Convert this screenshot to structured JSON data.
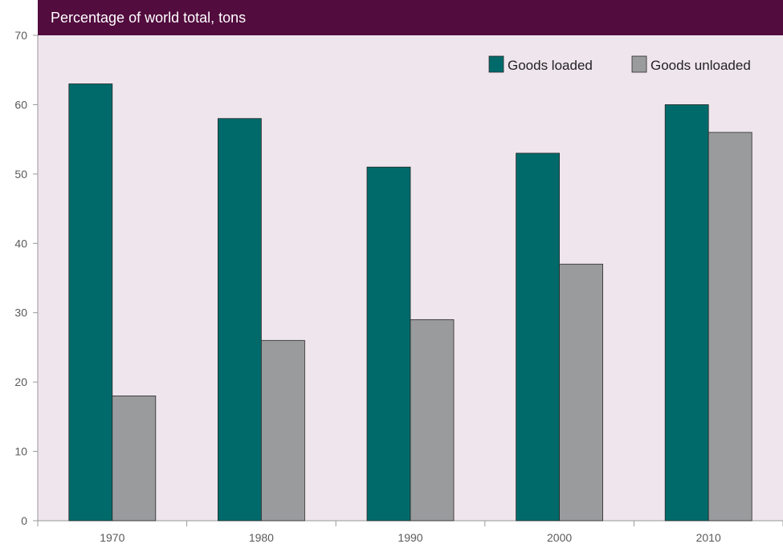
{
  "colors": {
    "plot_background": "#efe5ec",
    "title_bar": "#520c3e",
    "goods_loaded": "#006a6b",
    "goods_unloaded": "#9a9b9d",
    "axis": "#999999"
  },
  "chart_data": {
    "type": "bar",
    "title": "Percentage of world total, tons",
    "xlabel": "",
    "ylabel": "",
    "ylim": [
      0,
      70
    ],
    "yticks": [
      0,
      10,
      20,
      30,
      40,
      50,
      60,
      70
    ],
    "categories": [
      "1970",
      "1980",
      "1990",
      "2000",
      "2010"
    ],
    "series": [
      {
        "name": "Goods loaded",
        "values": [
          63,
          58,
          51,
          53,
          60
        ]
      },
      {
        "name": "Goods unloaded",
        "values": [
          18,
          26,
          29,
          37,
          56
        ]
      }
    ],
    "legend_position": "top-right",
    "grid": false
  }
}
